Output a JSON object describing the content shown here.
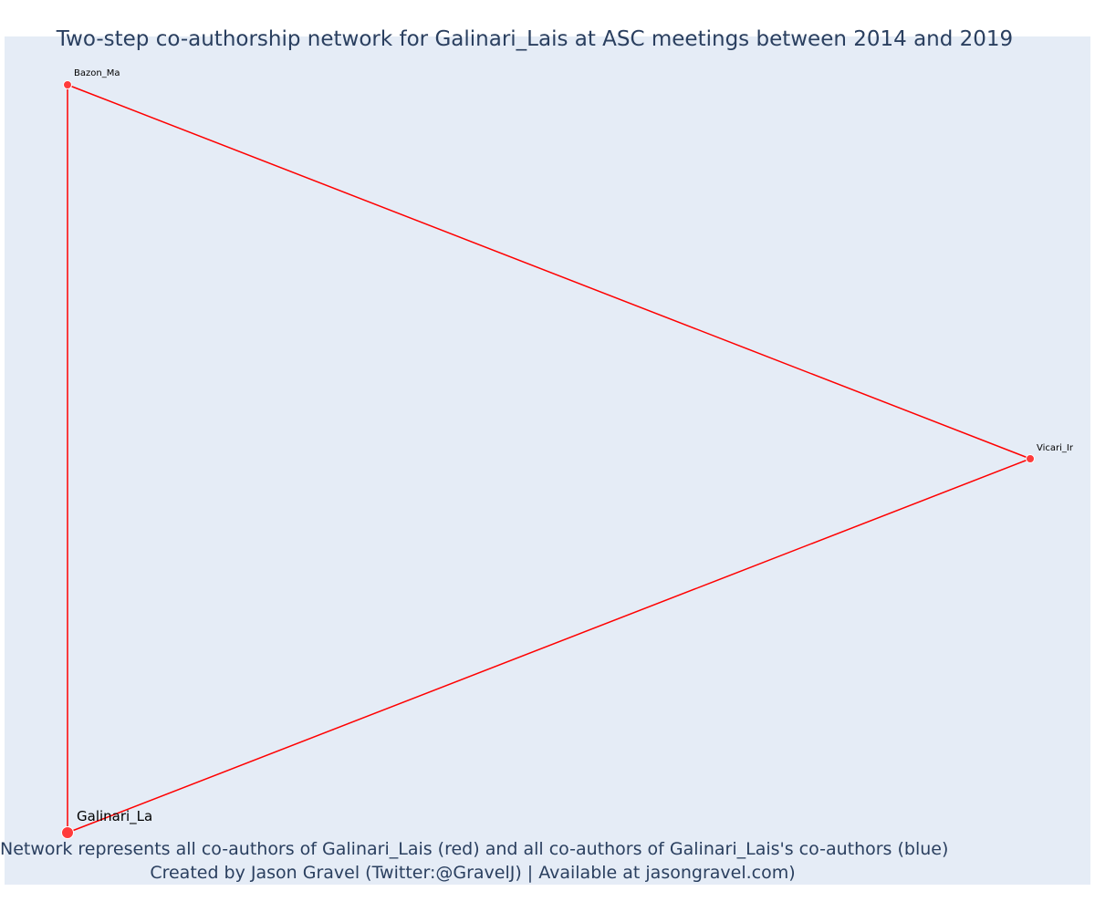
{
  "title": "Two-step co-authorship network for Galinari_Lais at ASC meetings between 2014 and 2019",
  "caption": {
    "line1": "Network represents all co-authors of Galinari_Lais (red) and all co-authors of Galinari_Lais's co-authors (blue)",
    "line2": "Created by Jason Gravel (Twitter:@GravelJ) | Available at jasongravel.com)"
  },
  "colors": {
    "background": "#e5ecf6",
    "edge": "#ff0000",
    "node": "#ff3b3b",
    "text": "#2a3f5f"
  },
  "nodes": [
    {
      "id": "galinari",
      "label": "Galinari_La",
      "role": "focal"
    },
    {
      "id": "bazon",
      "label": "Bazon_Ma",
      "role": "coauthor"
    },
    {
      "id": "vicari",
      "label": "Vicari_Ir",
      "role": "coauthor"
    }
  ],
  "edges": [
    {
      "source": "bazon",
      "target": "vicari"
    },
    {
      "source": "bazon",
      "target": "galinari"
    },
    {
      "source": "vicari",
      "target": "galinari"
    }
  ]
}
